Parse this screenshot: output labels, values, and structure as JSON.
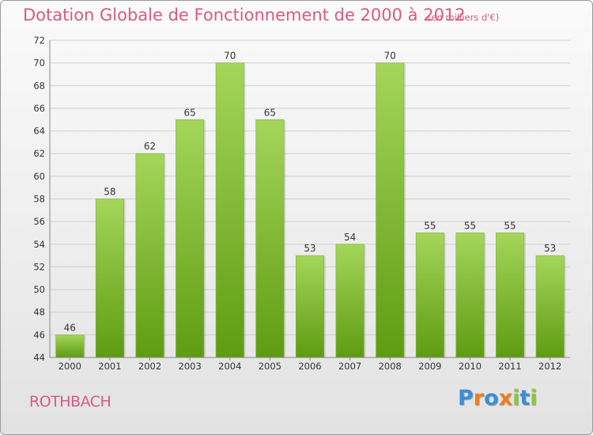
{
  "header": {
    "title": "Dotation Globale de Fonctionnement de 2000 à 2012",
    "unit": "(en milliers d'€)"
  },
  "footer": {
    "commune": "ROTHBACH",
    "logo_text": "Proxiti",
    "logo_letters": [
      {
        "char": "P",
        "color": "#3a8fd6"
      },
      {
        "char": "r",
        "color": "#f07c1a"
      },
      {
        "char": "o",
        "color": "#3a8fd6"
      },
      {
        "char": "x",
        "color": "#f07c1a"
      },
      {
        "char": "i",
        "color": "#8cc63f"
      },
      {
        "char": "t",
        "color": "#3a8fd6"
      },
      {
        "char": "i",
        "color": "#8cc63f"
      }
    ]
  },
  "colors": {
    "title": "#d85a84",
    "bar_light": "#a4d65a",
    "bar_dark": "#5e9c12",
    "grid": "#cfcfcf",
    "axis_text": "#333333"
  },
  "chart_data": {
    "type": "bar",
    "title": "Dotation Globale de Fonctionnement de 2000 à 2012",
    "subtitle": "(en milliers d'€)",
    "xlabel": "",
    "ylabel": "",
    "categories": [
      "2000",
      "2001",
      "2002",
      "2003",
      "2004",
      "2005",
      "2006",
      "2007",
      "2008",
      "2009",
      "2010",
      "2011",
      "2012"
    ],
    "values": [
      46,
      58,
      62,
      65,
      70,
      65,
      53,
      54,
      70,
      55,
      55,
      55,
      53
    ],
    "ylim": [
      44,
      72
    ],
    "yticks": [
      44,
      46,
      48,
      50,
      52,
      54,
      56,
      58,
      60,
      62,
      64,
      66,
      68,
      70,
      72
    ],
    "grid": true,
    "legend": "none"
  }
}
